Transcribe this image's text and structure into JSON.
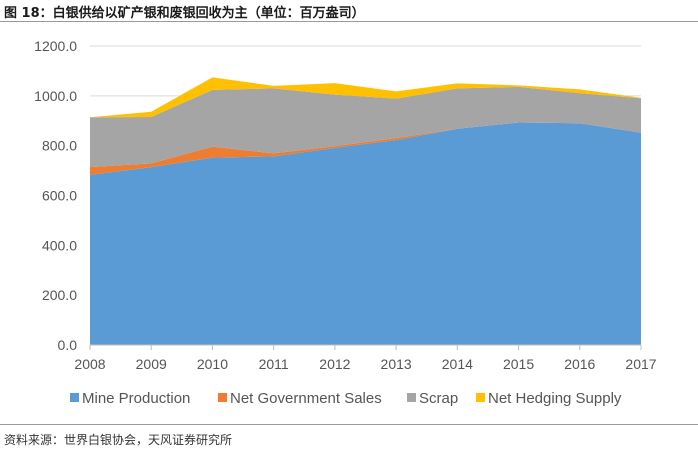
{
  "figure": {
    "title": "图 18：白银供给以矿产银和废银回收为主（单位：百万盎司）",
    "source": "资料来源：世界白银协会，天风证券研究所"
  },
  "chart_data": {
    "type": "area",
    "stacked": true,
    "title": "",
    "xlabel": "",
    "ylabel": "",
    "x": [
      "2008",
      "2009",
      "2010",
      "2011",
      "2012",
      "2013",
      "2014",
      "2015",
      "2016",
      "2017"
    ],
    "ylim": [
      0,
      1200
    ],
    "yticks": [
      "0.0",
      "200.0",
      "400.0",
      "600.0",
      "800.0",
      "1000.0",
      "1200.0"
    ],
    "ytick_values": [
      0,
      200,
      400,
      600,
      800,
      1000,
      1200
    ],
    "grid": true,
    "legend_position": "bottom",
    "series": [
      {
        "name": "Mine Production",
        "color": "#5b9bd5",
        "values": [
          683,
          714,
          752,
          757,
          791,
          823,
          868,
          893,
          890,
          852
        ]
      },
      {
        "name": "Net Government Sales",
        "color": "#ed7d31",
        "values": [
          31,
          15,
          44,
          12,
          7,
          8,
          0,
          0,
          0,
          0
        ]
      },
      {
        "name": "Scrap",
        "color": "#a5a5a5",
        "values": [
          200,
          186,
          228,
          261,
          207,
          158,
          162,
          143,
          121,
          138
        ]
      },
      {
        "name": "Net Hedging Supply",
        "color": "#ffc000",
        "values": [
          0,
          21,
          50,
          10,
          46,
          29,
          20,
          6,
          15,
          2
        ]
      }
    ]
  }
}
